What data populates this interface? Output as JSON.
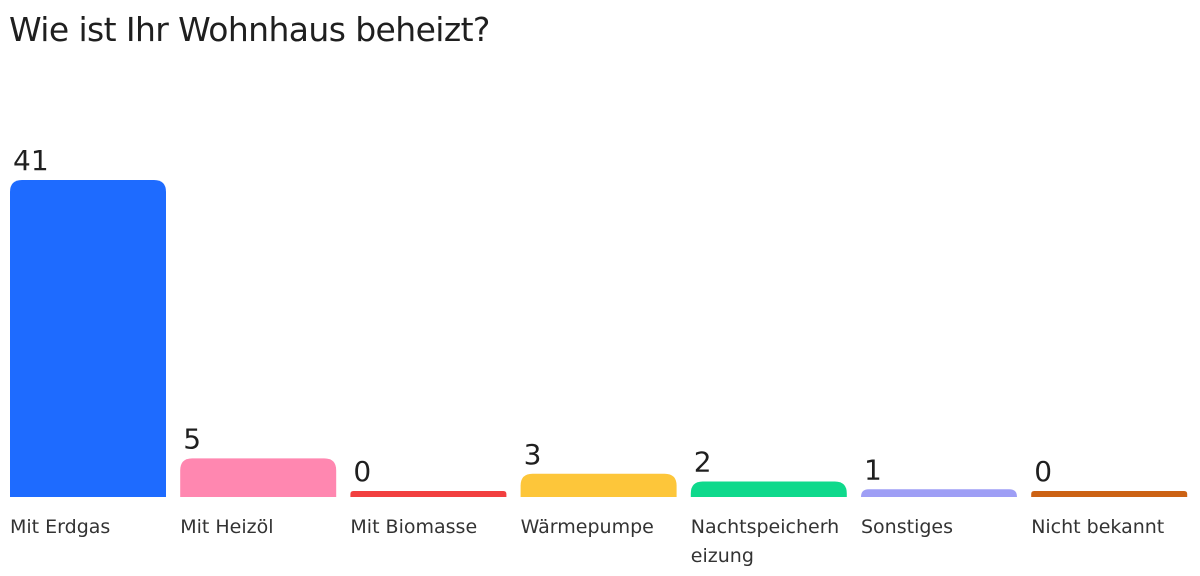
{
  "title": "Wie ist Ihr Wohnhaus beheizt?",
  "chart_data": {
    "type": "bar",
    "title": "Wie ist Ihr Wohnhaus beheizt?",
    "categories": [
      [
        "Mit Erdgas"
      ],
      [
        "Mit Heizöl"
      ],
      [
        "Mit Biomasse"
      ],
      [
        "Wärmepumpe"
      ],
      [
        "Nachtspeicherh",
        "eizung"
      ],
      [
        "Sonstiges"
      ],
      [
        "Nicht bekannt"
      ]
    ],
    "values": [
      41,
      5,
      0,
      3,
      2,
      1,
      0
    ],
    "colors": [
      "#1e6bff",
      "#ff87b0",
      "#f23f3f",
      "#fdc63a",
      "#0fd98c",
      "#9e9ef5",
      "#cc6214"
    ],
    "xlabel": "",
    "ylabel": "",
    "grid": false,
    "legend": "none"
  }
}
